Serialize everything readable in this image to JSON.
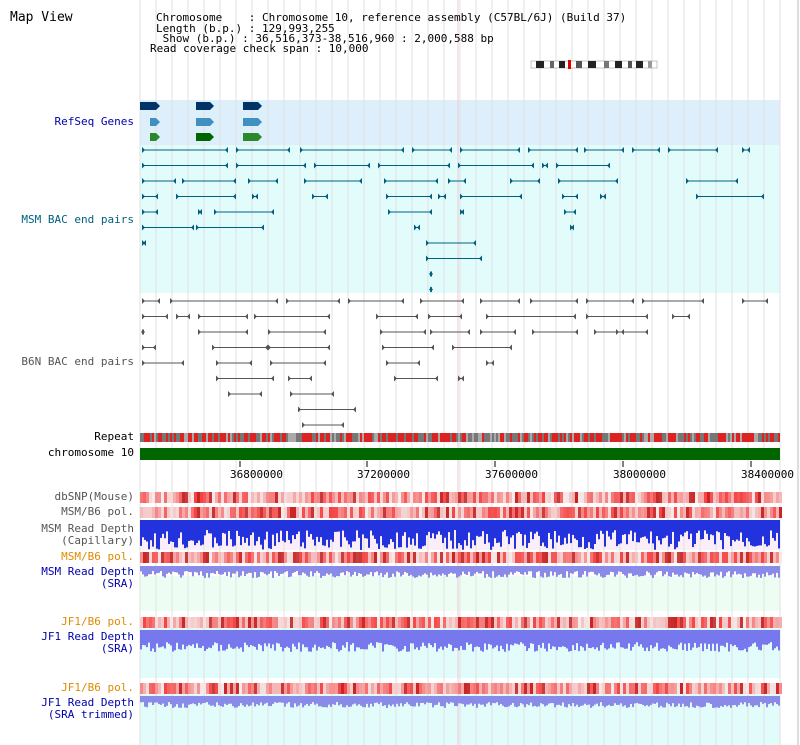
{
  "title": "Map View",
  "header": {
    "chromosome": "Chromosome    : Chromosome 10, reference assembly (C57BL/6J) (Build 37)",
    "length": "Length (b.p.) : 129,993,255",
    "show": " Show (b.p.) : 36,516,373-38,516,960 : 2,000,588 bp",
    "coverage": "Read coverage check span : 10,000"
  },
  "tracks": {
    "refseq": "RefSeq Genes",
    "msm_bac": "MSM BAC end pairs",
    "b6n_bac": "B6N BAC end pairs",
    "repeat": "Repeat",
    "chromosome": "chromosome 10",
    "dbsnp": "dbSNP(Mouse)",
    "msm_pol1": "MSM/B6 pol.",
    "msm_depth_cap_1": "MSM Read Depth",
    "msm_depth_cap_2": "(Capillary)",
    "msm_pol2": "MSM/B6 pol.",
    "msm_depth_sra_1": "MSM Read Depth",
    "msm_depth_sra_2": "(SRA)",
    "jf1_pol1": "JF1/B6 pol.",
    "jf1_depth_sra_1": "JF1 Read Depth",
    "jf1_depth_sra_2": "(SRA)",
    "jf1_pol2": "JF1/B6 pol.",
    "jf1_depth_trim_1": "JF1 Read Depth",
    "jf1_depth_trim_2": "(SRA trimmed)"
  },
  "axis_ticks": [
    "36800000",
    "37200000",
    "37600000",
    "38000000",
    "38400000"
  ],
  "colors": {
    "refseq_bg": "#dceffa",
    "msm_bg": "#e2fbfb",
    "depth_bg": "#fbeef8",
    "sra_bg": "#eefdf3",
    "jf1_bg": "#e2fbfb",
    "msm_feature": "#006080",
    "b6n_feature": "#555555",
    "label_blue": "#0000aa",
    "label_teal": "#006080",
    "label_orange": "#e08a00",
    "chromosome_bar": "#006600"
  }
}
